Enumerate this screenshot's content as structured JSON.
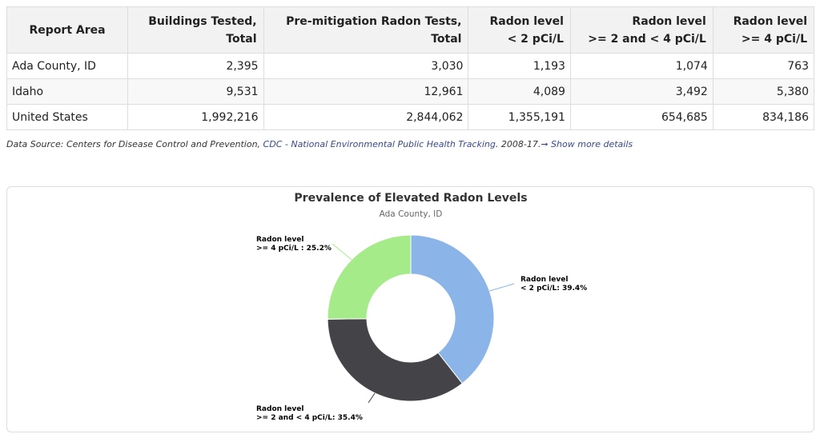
{
  "table": {
    "headers": [
      [
        "Report Area"
      ],
      [
        "Buildings Tested,",
        "Total"
      ],
      [
        "Pre-mitigation Radon Tests,",
        "Total"
      ],
      [
        "Radon level",
        "< 2 pCi/L"
      ],
      [
        "Radon level",
        ">= 2 and < 4 pCi/L"
      ],
      [
        "Radon level",
        ">= 4 pCi/L"
      ]
    ],
    "rows": [
      [
        "Ada County, ID",
        "2,395",
        "3,030",
        "1,193",
        "1,074",
        "763"
      ],
      [
        "Idaho",
        "9,531",
        "12,961",
        "4,089",
        "3,492",
        "5,380"
      ],
      [
        "United States",
        "1,992,216",
        "2,844,062",
        "1,355,191",
        "654,685",
        "834,186"
      ]
    ]
  },
  "source": {
    "prefix": "Data Source: Centers for Disease Control and Prevention, ",
    "link": "CDC - National Environmental Public Health Tracking",
    "suffix": ". 2008-17.",
    "arrow": "➞",
    "more": "Show more details"
  },
  "chart_data": {
    "type": "pie",
    "donut": true,
    "title": "Prevalence of Elevated Radon Levels",
    "subtitle": "Ada County, ID",
    "slices": [
      {
        "label_lines": [
          "Radon level",
          "< 2 pCi/L: 39.4%"
        ],
        "value": 39.4,
        "color": "#8bb4e8"
      },
      {
        "label_lines": [
          "Radon level",
          ">= 2 and < 4 pCi/L: 35.4%"
        ],
        "value": 35.4,
        "color": "#434348"
      },
      {
        "label_lines": [
          "Radon level",
          ">= 4 pCi/L : 25.2%"
        ],
        "value": 25.2,
        "color": "#a6eb89"
      }
    ]
  }
}
